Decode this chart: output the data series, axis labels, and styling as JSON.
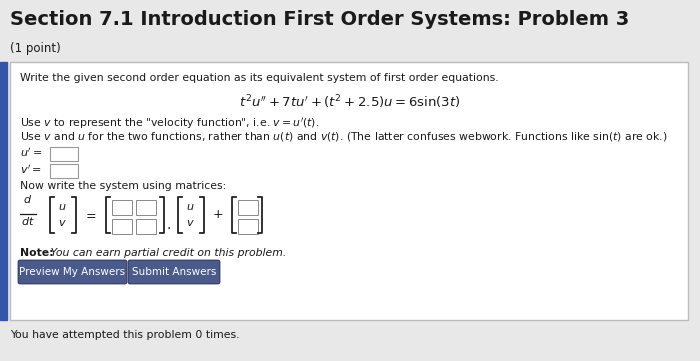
{
  "title": "Section 7.1 Introduction First Order Systems: Problem 3",
  "subtitle": "(1 point)",
  "bg_color": "#e8e8e8",
  "box_bg": "#ffffff",
  "box_border": "#cccccc",
  "text_color": "#1a1a1a",
  "line1": "Write the given second order equation as its equivalent system of first order equations.",
  "equation": "$t^2u'' + 7tu' + (t^2 + 2.5)u = 6\\sin(3t)$",
  "line2": "Use $v$ to represent the \"velocity function\", i.e. $v = u'(t)$.",
  "line3": "Use $v$ and $u$ for the two functions, rather than $u(t)$ and $v(t)$. (The latter confuses webwork. Functions like $\\sin(t)$ are ok.)",
  "uprime_label": "$u' =$",
  "vprime_label": "$v' =$",
  "matrix_label": "Now write the system using matrices:",
  "note_bold": "Note:",
  "note_italic": " You can earn partial credit on this problem.",
  "btn1": "Preview My Answers",
  "btn2": "Submit Answers",
  "footer": "You have attempted this problem 0 times.",
  "btn_color": "#4a5a8a"
}
